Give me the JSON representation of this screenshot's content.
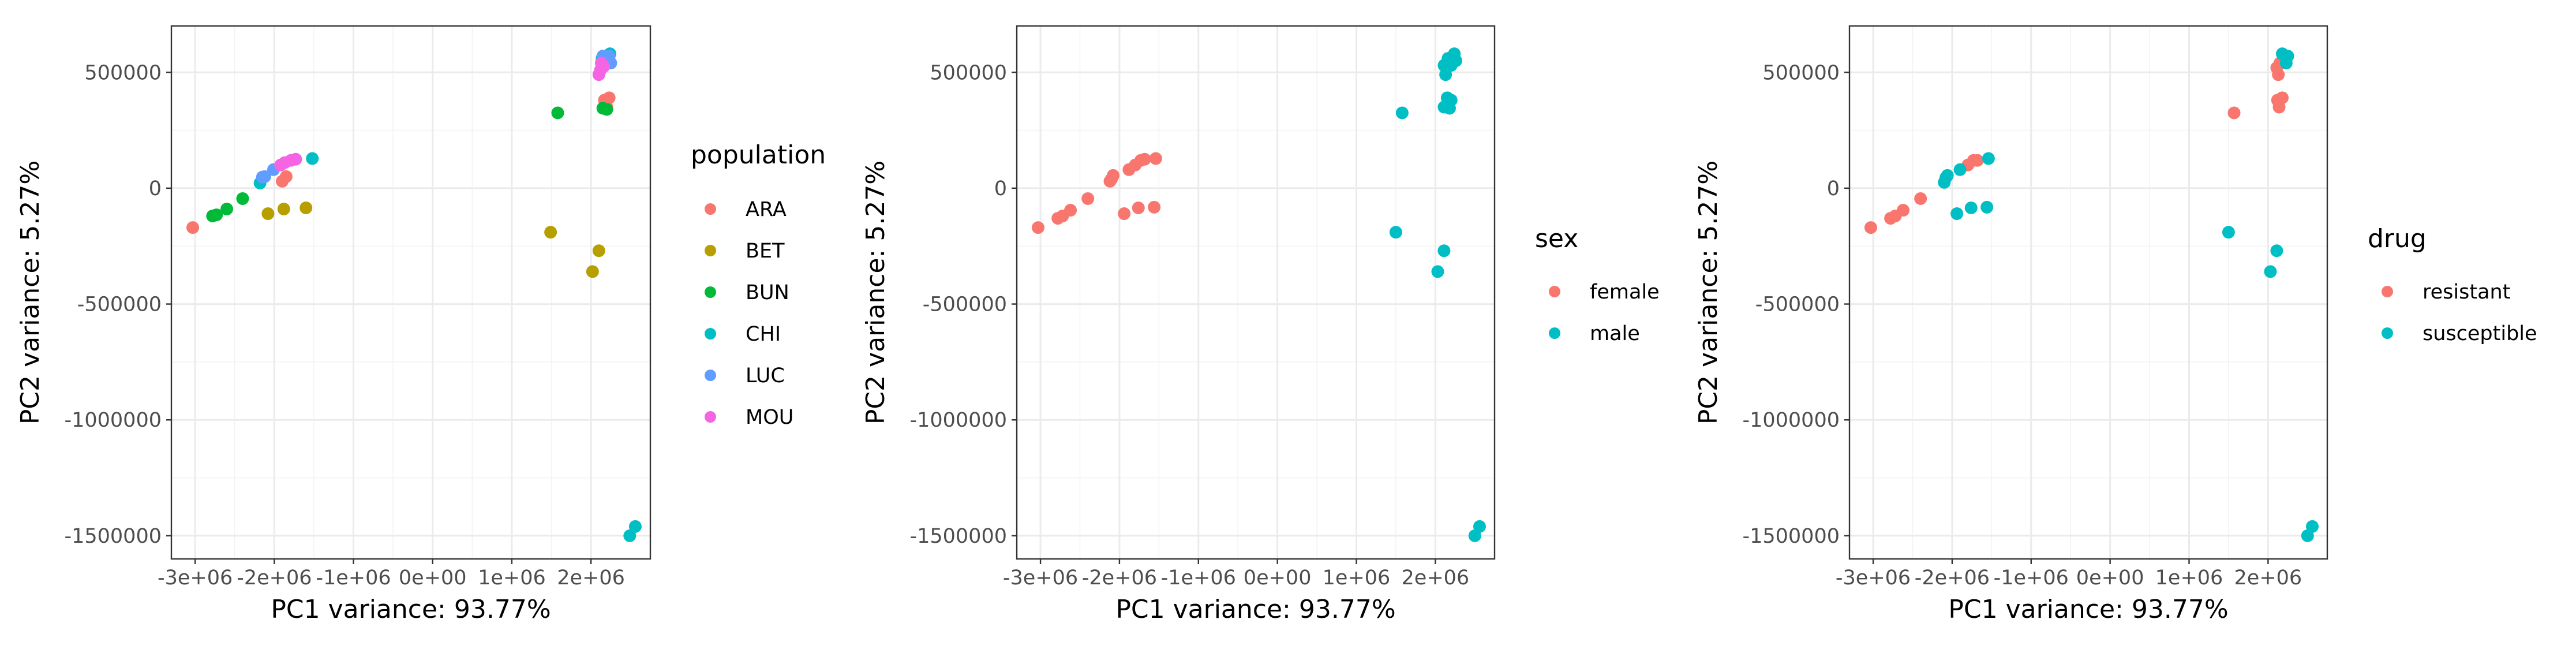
{
  "chart_data": [
    {
      "type": "scatter",
      "xlabel": "PC1 variance: 93.77%",
      "ylabel": "PC2 variance: 5.27%",
      "xlim": [
        -3300000,
        2750000
      ],
      "ylim": [
        -1600000,
        700000
      ],
      "x_ticks": [
        -3000000,
        -2000000,
        -1000000,
        0,
        1000000,
        2000000
      ],
      "x_tick_labels": [
        "-3e+06",
        "-2e+06",
        "-1e+06",
        "0e+00",
        "1e+06",
        "2e+06"
      ],
      "y_ticks": [
        -1500000,
        -1000000,
        -500000,
        0,
        500000
      ],
      "y_tick_labels": [
        "-1500000",
        "-1000000",
        "-500000",
        "0",
        "500000"
      ],
      "grid": true,
      "legend_position": "right",
      "legend": {
        "title": "population",
        "entries": [
          {
            "label": "ARA",
            "color": "#F8766D"
          },
          {
            "label": "BET",
            "color": "#B79F00"
          },
          {
            "label": "BUN",
            "color": "#00BA38"
          },
          {
            "label": "CHI",
            "color": "#00BFC4"
          },
          {
            "label": "LUC",
            "color": "#619CFF"
          },
          {
            "label": "MOU",
            "color": "#F564E3"
          }
        ]
      },
      "series": [
        {
          "name": "ARA",
          "color": "#F8766D",
          "points": [
            [
              -3030000,
              -170000
            ],
            [
              2170000,
              380000
            ],
            [
              2230000,
              390000
            ],
            [
              2200000,
              350000
            ],
            [
              -1900000,
              30000
            ],
            [
              -1850000,
              50000
            ]
          ]
        },
        {
          "name": "BET",
          "color": "#B79F00",
          "points": [
            [
              -2080000,
              -110000
            ],
            [
              -1880000,
              -90000
            ],
            [
              -1600000,
              -85000
            ],
            [
              1490000,
              -190000
            ],
            [
              2100000,
              -270000
            ],
            [
              2020000,
              -360000
            ]
          ]
        },
        {
          "name": "BUN",
          "color": "#00BA38",
          "points": [
            [
              -2780000,
              -120000
            ],
            [
              -2730000,
              -115000
            ],
            [
              -2600000,
              -90000
            ],
            [
              -2400000,
              -45000
            ],
            [
              1580000,
              325000
            ],
            [
              2150000,
              345000
            ],
            [
              2200000,
              340000
            ]
          ]
        },
        {
          "name": "CHI",
          "color": "#00BFC4",
          "points": [
            [
              -1520000,
              128000
            ],
            [
              -2180000,
              22000
            ],
            [
              2560000,
              -1460000
            ],
            [
              2490000,
              -1500000
            ],
            [
              2140000,
              560000
            ],
            [
              2240000,
              580000
            ]
          ]
        },
        {
          "name": "LUC",
          "color": "#619CFF",
          "points": [
            [
              -2150000,
              48000
            ],
            [
              -2120000,
              50000
            ],
            [
              -2010000,
              80000
            ],
            [
              2150000,
              570000
            ],
            [
              2230000,
              570000
            ],
            [
              2250000,
              540000
            ]
          ]
        },
        {
          "name": "MOU",
          "color": "#F564E3",
          "points": [
            [
              -1920000,
              100000
            ],
            [
              -1870000,
              110000
            ],
            [
              -1790000,
              120000
            ],
            [
              -1730000,
              125000
            ],
            [
              2130000,
              540000
            ],
            [
              2120000,
              510000
            ],
            [
              2100000,
              490000
            ],
            [
              2160000,
              525000
            ]
          ]
        }
      ]
    },
    {
      "type": "scatter",
      "xlabel": "PC1 variance: 93.77%",
      "ylabel": "PC2 variance: 5.27%",
      "xlim": [
        -3300000,
        2750000
      ],
      "ylim": [
        -1600000,
        700000
      ],
      "x_ticks": [
        -3000000,
        -2000000,
        -1000000,
        0,
        1000000,
        2000000
      ],
      "x_tick_labels": [
        "-3e+06",
        "-2e+06",
        "-1e+06",
        "0e+00",
        "1e+06",
        "2e+06"
      ],
      "y_ticks": [
        -1500000,
        -1000000,
        -500000,
        0,
        500000
      ],
      "y_tick_labels": [
        "-1500000",
        "-1000000",
        "-500000",
        "0",
        "500000"
      ],
      "grid": true,
      "legend_position": "right",
      "legend": {
        "title": "sex",
        "entries": [
          {
            "label": "female",
            "color": "#F8766D"
          },
          {
            "label": "male",
            "color": "#00BFC4"
          }
        ]
      },
      "series": [
        {
          "name": "female",
          "color": "#F8766D",
          "points": [
            [
              -3030000,
              -170000
            ],
            [
              -2780000,
              -130000
            ],
            [
              -2720000,
              -120000
            ],
            [
              -2620000,
              -95000
            ],
            [
              -2400000,
              -45000
            ],
            [
              -2120000,
              30000
            ],
            [
              -2100000,
              40000
            ],
            [
              -2080000,
              55000
            ],
            [
              -1880000,
              80000
            ],
            [
              -1800000,
              100000
            ],
            [
              -1730000,
              120000
            ],
            [
              -1680000,
              125000
            ],
            [
              -1540000,
              128000
            ],
            [
              -1940000,
              -110000
            ],
            [
              -1760000,
              -85000
            ],
            [
              -1560000,
              -82000
            ]
          ]
        },
        {
          "name": "male",
          "color": "#00BFC4",
          "points": [
            [
              1580000,
              325000
            ],
            [
              2110000,
              350000
            ],
            [
              2180000,
              345000
            ],
            [
              2150000,
              390000
            ],
            [
              2200000,
              380000
            ],
            [
              2130000,
              490000
            ],
            [
              2110000,
              530000
            ],
            [
              2160000,
              560000
            ],
            [
              2240000,
              580000
            ],
            [
              2260000,
              550000
            ],
            [
              2200000,
              530000
            ],
            [
              1500000,
              -190000
            ],
            [
              2110000,
              -270000
            ],
            [
              2030000,
              -360000
            ],
            [
              2560000,
              -1460000
            ],
            [
              2500000,
              -1500000
            ]
          ]
        }
      ]
    },
    {
      "type": "scatter",
      "xlabel": "PC1 variance: 93.77%",
      "ylabel": "PC2 variance: 5.27%",
      "xlim": [
        -3300000,
        2750000
      ],
      "ylim": [
        -1600000,
        700000
      ],
      "x_ticks": [
        -3000000,
        -2000000,
        -1000000,
        0,
        1000000,
        2000000
      ],
      "x_tick_labels": [
        "-3e+06",
        "-2e+06",
        "-1e+06",
        "0e+00",
        "1e+06",
        "2e+06"
      ],
      "y_ticks": [
        -1500000,
        -1000000,
        -500000,
        0,
        500000
      ],
      "y_tick_labels": [
        "-1500000",
        "-1000000",
        "-500000",
        "0",
        "500000"
      ],
      "grid": true,
      "legend_position": "right",
      "legend": {
        "title": "drug",
        "entries": [
          {
            "label": "resistant",
            "color": "#F8766D"
          },
          {
            "label": "susceptible",
            "color": "#00BFC4"
          }
        ]
      },
      "series": [
        {
          "name": "resistant",
          "color": "#F8766D",
          "points": [
            [
              -3030000,
              -170000
            ],
            [
              -2780000,
              -130000
            ],
            [
              -2720000,
              -120000
            ],
            [
              -2620000,
              -95000
            ],
            [
              -2400000,
              -45000
            ],
            [
              -1800000,
              100000
            ],
            [
              -1730000,
              120000
            ],
            [
              -1680000,
              120000
            ],
            [
              1570000,
              325000
            ],
            [
              2140000,
              350000
            ],
            [
              2180000,
              390000
            ],
            [
              2120000,
              380000
            ],
            [
              2130000,
              490000
            ],
            [
              2110000,
              520000
            ],
            [
              2150000,
              540000
            ]
          ]
        },
        {
          "name": "susceptible",
          "color": "#00BFC4",
          "points": [
            [
              -2100000,
              25000
            ],
            [
              -2080000,
              45000
            ],
            [
              -2060000,
              55000
            ],
            [
              -1900000,
              80000
            ],
            [
              -1540000,
              128000
            ],
            [
              -1940000,
              -110000
            ],
            [
              -1760000,
              -85000
            ],
            [
              -1560000,
              -82000
            ],
            [
              2180000,
              580000
            ],
            [
              2250000,
              570000
            ],
            [
              2230000,
              540000
            ],
            [
              1500000,
              -190000
            ],
            [
              2110000,
              -270000
            ],
            [
              2030000,
              -360000
            ],
            [
              2560000,
              -1460000
            ],
            [
              2500000,
              -1500000
            ]
          ]
        }
      ]
    }
  ]
}
